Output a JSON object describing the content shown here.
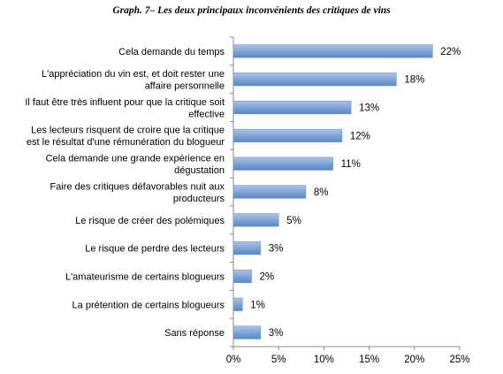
{
  "chart_data": {
    "type": "bar",
    "orientation": "horizontal",
    "title": "Graph. 7– Les deux principaux inconvénients des critiques de vins",
    "categories": [
      "Cela demande du temps",
      "L'appréciation du vin est, et doit rester une affaire personnelle",
      "Il faut être très influent pour que la critique soit effective",
      "Les lecteurs risquent de croire que la critique est le résultat d'une rémunération du blogueur",
      "Cela demande une grande expérience en dégustation",
      "Faire des critiques défavorables nuit aux producteurs",
      "Le risque de créer des polémiques",
      "Le risque de perdre des lecteurs",
      "L'amateurisme de certains blogueurs",
      "La prétention de certains blogueurs",
      "Sans réponse"
    ],
    "category_lines": [
      [
        "Cela demande du temps"
      ],
      [
        "L'appréciation du vin est, et doit rester une",
        "affaire personnelle"
      ],
      [
        "Il faut être très influent pour que la critique soit",
        "effective"
      ],
      [
        "Les lecteurs risquent de croire que la critique",
        "est le résultat d'une rémunération du blogueur"
      ],
      [
        "Cela demande une grande expérience en",
        "dégustation"
      ],
      [
        "Faire des critiques défavorables nuit aux",
        "producteurs"
      ],
      [
        "Le risque de créer des polémiques"
      ],
      [
        "Le risque de perdre des lecteurs"
      ],
      [
        "L'amateurisme de certains blogueurs"
      ],
      [
        "La prétention de certains blogueurs"
      ],
      [
        "Sans réponse"
      ]
    ],
    "values": [
      22,
      18,
      13,
      12,
      11,
      8,
      5,
      3,
      2,
      1,
      3
    ],
    "value_labels": [
      "22%",
      "18%",
      "13%",
      "12%",
      "11%",
      "8%",
      "5%",
      "3%",
      "2%",
      "1%",
      "3%"
    ],
    "xlim": [
      0,
      25
    ],
    "xticks": [
      0,
      5,
      10,
      15,
      20,
      25
    ],
    "xtick_labels": [
      "0%",
      "5%",
      "10%",
      "15%",
      "20%",
      "25%"
    ],
    "xlabel": "",
    "ylabel": "",
    "grid": false,
    "legend": "none",
    "bar_color_light": "#a9c4e8",
    "bar_color_dark": "#5a86c4"
  }
}
